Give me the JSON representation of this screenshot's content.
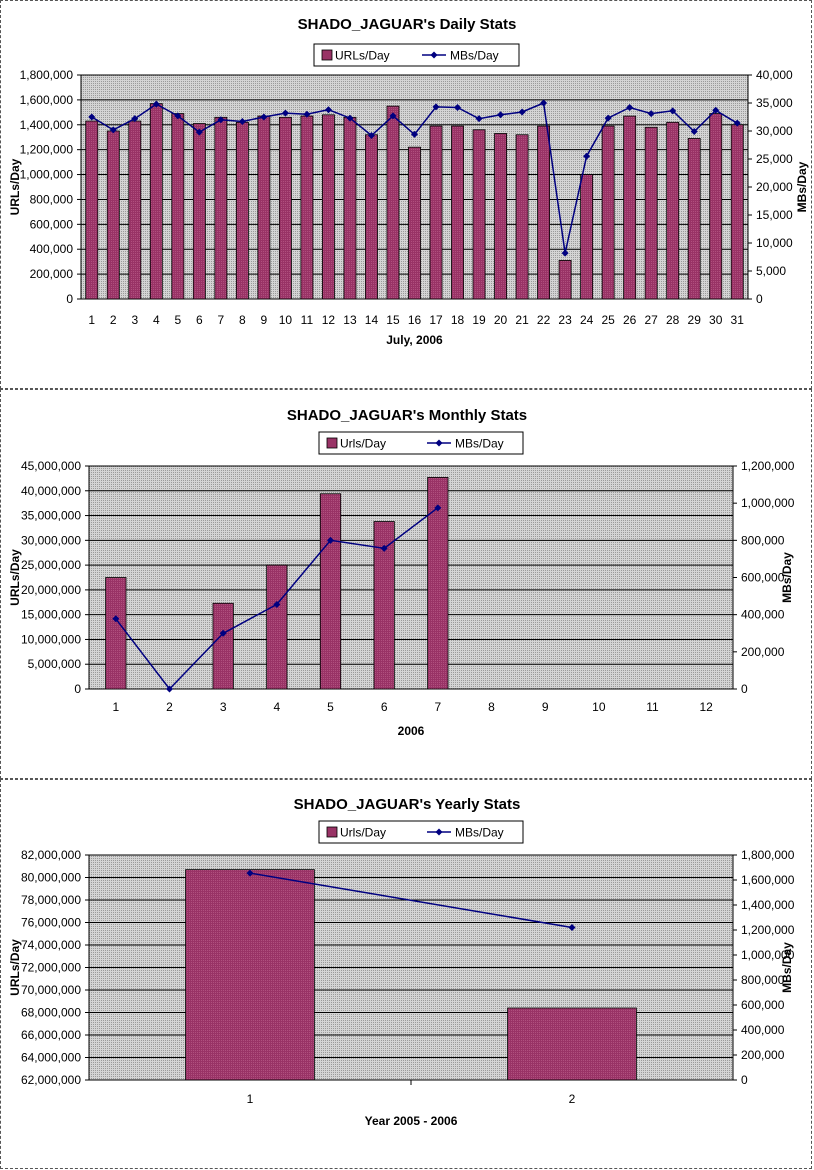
{
  "colors": {
    "bar": "#993366",
    "line": "#000080",
    "plot_bg": "#c0c0c0",
    "grid": "#000000"
  },
  "chart_data": [
    {
      "type": "bar",
      "title": "SHADO_JAGUAR's Daily Stats",
      "xlabel": "July, 2006",
      "ylabel": "URLs/Day",
      "y2label": "MBs/Day",
      "legend": [
        "URLs/Day",
        "MBs/Day"
      ],
      "legend_position": "top",
      "categories": [
        "1",
        "2",
        "3",
        "4",
        "5",
        "6",
        "7",
        "8",
        "9",
        "10",
        "11",
        "12",
        "13",
        "14",
        "15",
        "16",
        "17",
        "18",
        "19",
        "20",
        "21",
        "22",
        "23",
        "24",
        "25",
        "26",
        "27",
        "28",
        "29",
        "30",
        "31"
      ],
      "ylim": [
        0,
        1800000
      ],
      "y_ticks": [
        "1,800,000",
        "1,600,000",
        "1,400,000",
        "1,200,000",
        "1,000,000",
        "800,000",
        "600,000",
        "400,000",
        "200,000",
        "0"
      ],
      "y2lim": [
        0,
        40000
      ],
      "y2_ticks": [
        "40,000",
        "35,000",
        "30,000",
        "25,000",
        "20,000",
        "15,000",
        "10,000",
        "5,000",
        "0"
      ],
      "series": [
        {
          "name": "URLs/Day",
          "kind": "bar",
          "values": [
            1430000,
            1350000,
            1430000,
            1570000,
            1490000,
            1410000,
            1460000,
            1420000,
            1470000,
            1460000,
            1470000,
            1480000,
            1460000,
            1320000,
            1550000,
            1220000,
            1390000,
            1390000,
            1360000,
            1330000,
            1320000,
            1390000,
            310000,
            1000000,
            1390000,
            1470000,
            1380000,
            1420000,
            1290000,
            1490000,
            1400000
          ]
        },
        {
          "name": "MBs/Day",
          "kind": "line",
          "values": [
            32500,
            30200,
            32200,
            34800,
            32700,
            29800,
            32000,
            31700,
            32500,
            33200,
            33000,
            33800,
            32300,
            29200,
            32700,
            29400,
            34300,
            34200,
            32200,
            32900,
            33400,
            35000,
            8200,
            25500,
            32300,
            34200,
            33100,
            33600,
            29900,
            33700,
            31400
          ]
        }
      ]
    },
    {
      "type": "bar",
      "title": "SHADO_JAGUAR's Monthly Stats",
      "xlabel": "2006",
      "ylabel": "URLs/Day",
      "y2label": "MBs/Day",
      "legend": [
        "Urls/Day",
        "MBs/Day"
      ],
      "legend_position": "top",
      "categories": [
        "1",
        "2",
        "3",
        "4",
        "5",
        "6",
        "7",
        "8",
        "9",
        "10",
        "11",
        "12"
      ],
      "ylim": [
        0,
        45000000
      ],
      "y_ticks": [
        "45,000,000",
        "40,000,000",
        "35,000,000",
        "30,000,000",
        "25,000,000",
        "20,000,000",
        "15,000,000",
        "10,000,000",
        "5,000,000",
        "0"
      ],
      "y2lim": [
        0,
        1200000
      ],
      "y2_ticks": [
        "1,200,000",
        "1,000,000",
        "800,000",
        "600,000",
        "400,000",
        "200,000",
        "0"
      ],
      "series": [
        {
          "name": "Urls/Day",
          "kind": "bar",
          "values": [
            22500000,
            0,
            17300000,
            25000000,
            39400000,
            33800000,
            42700000,
            null,
            null,
            null,
            null,
            null
          ]
        },
        {
          "name": "MBs/Day",
          "kind": "line",
          "values": [
            378000,
            0,
            300000,
            455000,
            800000,
            757000,
            975000,
            null,
            null,
            null,
            null,
            null
          ]
        }
      ]
    },
    {
      "type": "bar",
      "title": "SHADO_JAGUAR's Yearly Stats",
      "xlabel": "Year 2005 - 2006",
      "ylabel": "URLs/Day",
      "y2label": "MBs/Day",
      "legend": [
        "Urls/Day",
        "MBs/Day"
      ],
      "legend_position": "top",
      "categories": [
        "1",
        "2"
      ],
      "ylim": [
        62000000,
        82000000
      ],
      "y_ticks": [
        "82,000,000",
        "80,000,000",
        "78,000,000",
        "76,000,000",
        "74,000,000",
        "72,000,000",
        "70,000,000",
        "68,000,000",
        "66,000,000",
        "64,000,000",
        "62,000,000"
      ],
      "y2lim": [
        0,
        1800000
      ],
      "y2_ticks": [
        "1,800,000",
        "1,600,000",
        "1,400,000",
        "1,200,000",
        "1,000,000",
        "800,000",
        "600,000",
        "400,000",
        "200,000",
        "0"
      ],
      "series": [
        {
          "name": "Urls/Day",
          "kind": "bar",
          "values": [
            80700000,
            68400000
          ]
        },
        {
          "name": "MBs/Day",
          "kind": "line",
          "values": [
            1655000,
            1220000
          ]
        }
      ]
    }
  ]
}
